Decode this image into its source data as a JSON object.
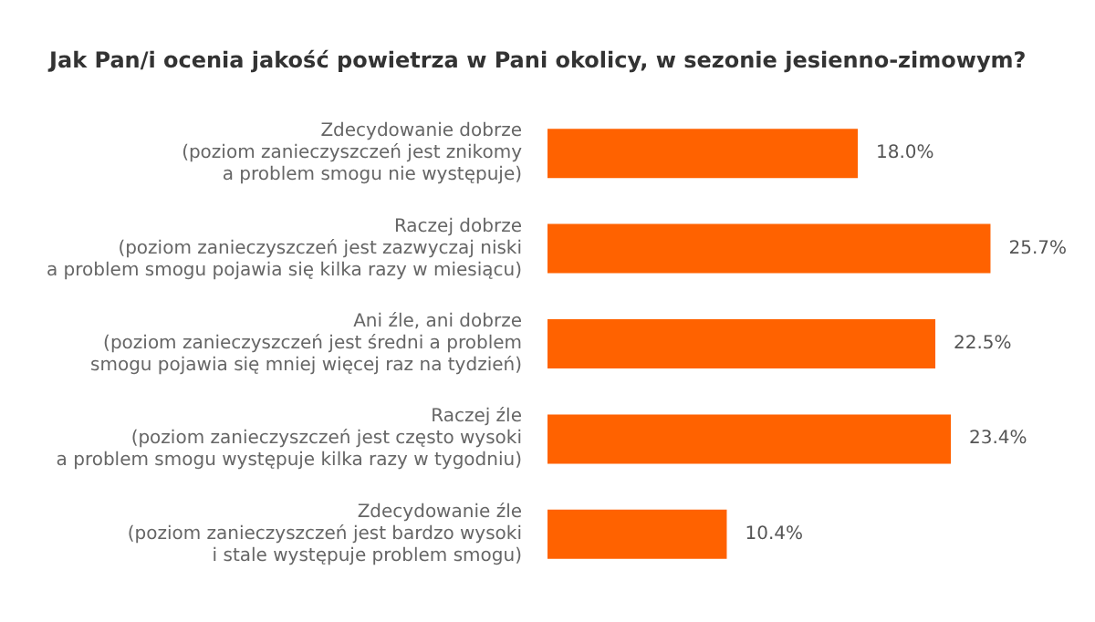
{
  "chart_data": {
    "type": "bar",
    "orientation": "horizontal",
    "title": "Jak Pan/i ocenia jakość powietrza w Pani okolicy, w sezonie jesienno-zimowym?",
    "categories": [
      "Zdecydowanie dobrze\n(poziom zanieczyszczeń jest znikomy\na problem smogu nie występuje)",
      "Raczej dobrze\n(poziom zanieczyszczeń jest zazwyczaj niski\na problem smogu pojawia się kilka razy w miesiącu)",
      "Ani źle, ani dobrze\n(poziom zanieczyszczeń jest średni a problem\nsmogu pojawia się mniej więcej raz na tydzień)",
      "Raczej źle\n(poziom zanieczyszczeń jest często wysoki\na problem smogu występuje kilka razy w tygodniu)",
      "Zdecydowanie źle\n(poziom zanieczyszczeń jest bardzo wysoki\ni stale występuje problem smogu)"
    ],
    "values": [
      18.0,
      25.7,
      22.5,
      23.4,
      10.4
    ],
    "value_labels": [
      "18.0%",
      "25.7%",
      "22.5%",
      "23.4%",
      "10.4%"
    ],
    "color": "#ff6200"
  }
}
